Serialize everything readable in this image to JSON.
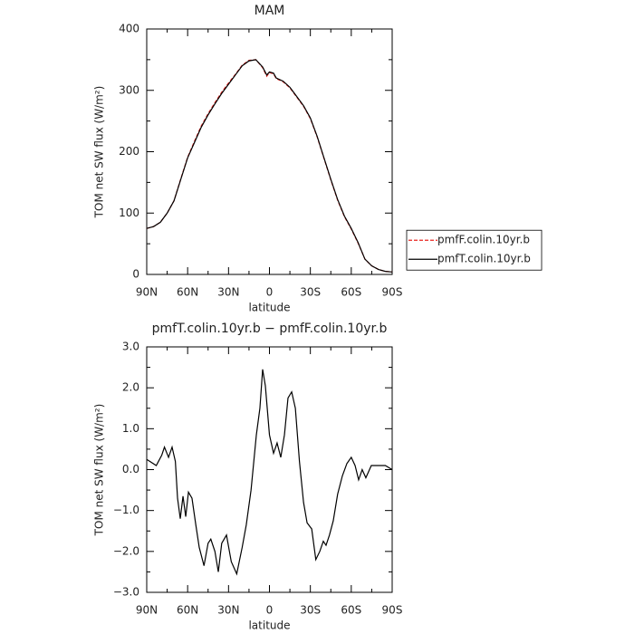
{
  "chart_data": [
    {
      "type": "line",
      "title": "MAM",
      "xlabel": "latitude",
      "ylabel": "TOM net SW flux (W/m²)",
      "xlim": [
        90,
        -90
      ],
      "xticks": [
        {
          "value": 90,
          "label": "90N"
        },
        {
          "value": 60,
          "label": "60N"
        },
        {
          "value": 30,
          "label": "30N"
        },
        {
          "value": 0,
          "label": "0"
        },
        {
          "value": -30,
          "label": "30S"
        },
        {
          "value": -60,
          "label": "60S"
        },
        {
          "value": -90,
          "label": "90S"
        }
      ],
      "ylim": [
        0,
        400
      ],
      "yticks": [
        0,
        100,
        200,
        300,
        400
      ],
      "legend": "right",
      "x": [
        90,
        85,
        80,
        75,
        70,
        65,
        60,
        55,
        50,
        45,
        40,
        35,
        30,
        25,
        20,
        15,
        10,
        5,
        2,
        0,
        -3,
        -5,
        -10,
        -15,
        -20,
        -25,
        -30,
        -35,
        -40,
        -45,
        -50,
        -55,
        -60,
        -65,
        -70,
        -75,
        -80,
        -85,
        -90
      ],
      "series": [
        {
          "name": "pmfF.colin.10yr.b",
          "color": "#e8231f",
          "line_style": "dashed",
          "values": [
            75,
            78,
            85,
            100,
            120,
            156,
            191,
            217,
            242,
            262,
            280,
            297,
            312,
            326,
            341,
            349,
            350,
            337,
            323,
            329,
            327,
            319,
            314,
            304,
            289,
            274,
            254,
            224,
            189,
            154,
            121,
            94,
            74,
            51,
            25,
            14,
            8,
            5,
            4
          ]
        },
        {
          "name": "pmfT.colin.10yr.b",
          "color": "#000000",
          "line_style": "solid",
          "values": [
            75,
            78,
            85,
            100,
            120,
            155,
            190,
            215,
            240,
            260,
            278,
            295,
            310,
            325,
            340,
            348,
            350,
            338,
            325,
            330,
            328,
            320,
            315,
            305,
            290,
            275,
            255,
            225,
            190,
            155,
            122,
            95,
            75,
            52,
            25,
            14,
            8,
            5,
            4
          ]
        }
      ]
    },
    {
      "type": "line",
      "title": "pmfT.colin.10yr.b − pmfF.colin.10yr.b",
      "xlabel": "latitude",
      "ylabel": "TOM net SW flux (W/m²)",
      "xlim": [
        90,
        -90
      ],
      "xticks": [
        {
          "value": 90,
          "label": "90N"
        },
        {
          "value": 60,
          "label": "60N"
        },
        {
          "value": 30,
          "label": "30N"
        },
        {
          "value": 0,
          "label": "0"
        },
        {
          "value": -30,
          "label": "30S"
        },
        {
          "value": -60,
          "label": "60S"
        },
        {
          "value": -90,
          "label": "90S"
        }
      ],
      "ylim": [
        -3,
        3
      ],
      "yticks": [
        {
          "value": -3,
          "label": "−3.0"
        },
        {
          "value": -2,
          "label": "−2.0"
        },
        {
          "value": -1,
          "label": "−1.0"
        },
        {
          "value": 0,
          "label": "0.0"
        },
        {
          "value": 1,
          "label": "1.0"
        },
        {
          "value": 2,
          "label": "2.0"
        },
        {
          "value": 3,
          "label": "3.0"
        }
      ],
      "x": [
        90,
        83,
        79,
        77,
        74,
        71.4,
        69,
        67.4,
        65.4,
        63.4,
        61.4,
        59.4,
        56.8,
        54,
        51.5,
        48,
        45,
        43,
        40,
        37.5,
        35,
        31.5,
        28,
        24,
        20,
        17,
        13.5,
        9.6,
        7,
        5,
        3,
        0,
        -3,
        -5.6,
        -8.3,
        -11,
        -13.6,
        -16.3,
        -19,
        -22,
        -25,
        -27.6,
        -31,
        -34,
        -36.9,
        -39.5,
        -41.5,
        -44,
        -46.8,
        -50,
        -53.5,
        -56.8,
        -60,
        -62.8,
        -65.4,
        -68,
        -70.7,
        -74.7,
        -80,
        -85,
        -90
      ],
      "series": [
        {
          "color": "#000000",
          "values": [
            0.25,
            0.1,
            0.35,
            0.55,
            0.3,
            0.55,
            0.2,
            -0.7,
            -1.2,
            -0.65,
            -1.15,
            -0.55,
            -0.7,
            -1.35,
            -1.9,
            -2.35,
            -1.8,
            -1.7,
            -2.0,
            -2.5,
            -1.8,
            -1.6,
            -2.25,
            -2.55,
            -1.9,
            -1.35,
            -0.5,
            0.85,
            1.5,
            2.45,
            2.05,
            0.85,
            0.4,
            0.65,
            0.3,
            0.85,
            1.75,
            1.9,
            1.5,
            0.2,
            -0.8,
            -1.3,
            -1.45,
            -2.2,
            -2.0,
            -1.75,
            -1.85,
            -1.6,
            -1.25,
            -0.6,
            -0.15,
            0.15,
            0.3,
            0.1,
            -0.25,
            0.0,
            -0.2,
            0.1,
            0.1,
            0.1,
            0.0
          ]
        }
      ]
    }
  ]
}
